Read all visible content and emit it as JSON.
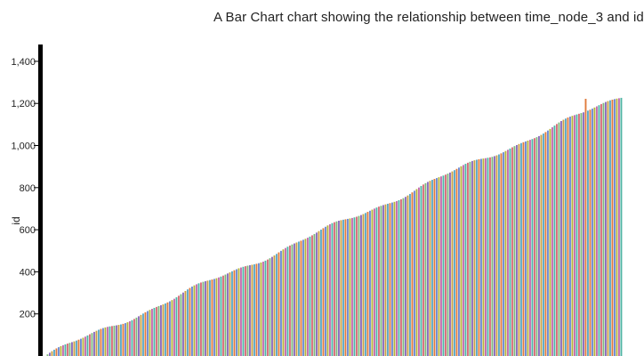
{
  "chart_data": {
    "type": "bar",
    "title": "A Bar Chart chart showing the relationship between time_node_3 and id",
    "xlabel": "",
    "ylabel": "id",
    "ylim": [
      0,
      1480
    ],
    "yticks": [
      200,
      400,
      600,
      800,
      1000,
      1200,
      1400
    ],
    "ytick_labels": [
      "200",
      "400",
      "600",
      "800",
      "1,000",
      "1,200",
      "1,400"
    ],
    "grid": false,
    "legend": "none",
    "bar_count": 260,
    "value_start": 0,
    "value_end": 1232,
    "highlight_index": 243,
    "highlight_value": 1222,
    "palette": [
      "#d96b7a",
      "#7fb77e",
      "#8a6bbf",
      "#c9a045",
      "#5aa9c9",
      "#e07b3c",
      "#6c8ad6",
      "#b6b23c",
      "#c46bb0",
      "#4fb5a4"
    ],
    "highlight_color": "#e07b3c"
  }
}
